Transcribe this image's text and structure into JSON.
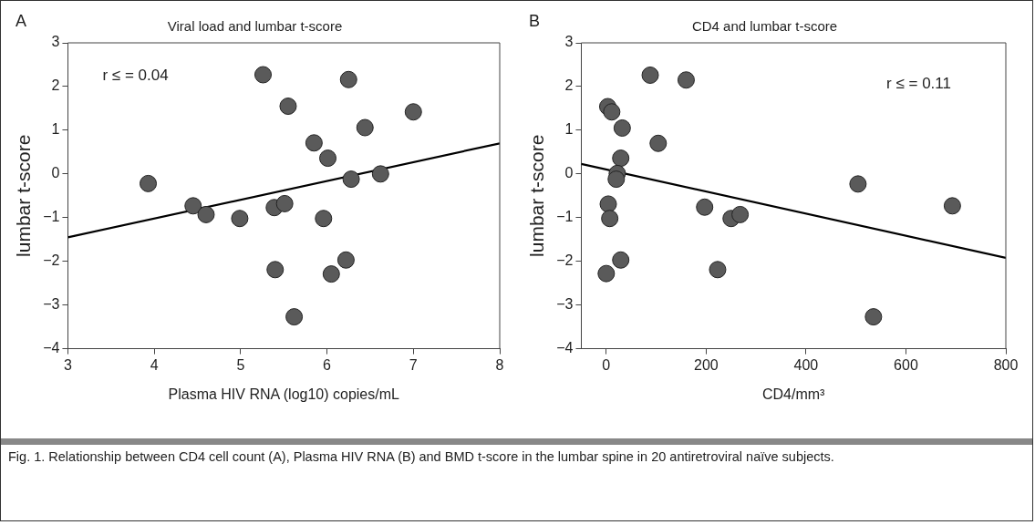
{
  "chart_data": [
    {
      "type": "scatter",
      "title": "Viral load and lumbar t-score",
      "xlabel": "Plasma HIV RNA (log10) copies/mL",
      "ylabel": "lumbar t-score",
      "annotations": [
        "A",
        "r ≤ = 0.04"
      ],
      "series": [
        {
          "color": "#5a5a5a",
          "marker": "circle",
          "x": [
            3.93,
            4.45,
            4.6,
            4.99,
            5.26,
            5.39,
            5.51,
            5.4,
            5.55,
            5.62,
            5.85,
            6.01,
            5.96,
            6.05,
            6.22,
            6.25,
            6.28,
            6.44,
            6.62,
            7.0
          ],
          "values": [
            -0.22,
            -0.73,
            -0.93,
            -1.02,
            2.27,
            -0.77,
            -0.68,
            -2.19,
            1.55,
            -3.27,
            0.71,
            0.36,
            -1.02,
            -2.29,
            -1.97,
            2.16,
            -0.12,
            1.06,
            0.0,
            1.42
          ]
        },
        {
          "type": "line",
          "color": "#000000",
          "marker": "none",
          "x": [
            3,
            8
          ],
          "values": [
            -1.45,
            0.7
          ]
        }
      ],
      "xlim": [
        3,
        8
      ],
      "xticks": [
        3,
        4,
        5,
        6,
        7,
        8
      ],
      "ylim": [
        -4,
        3
      ],
      "yticks": [
        -4,
        -3,
        -2,
        -1,
        0,
        1,
        2,
        3
      ],
      "grid": false,
      "legend": false
    },
    {
      "type": "scatter",
      "title": "CD4 and lumbar t-score",
      "xlabel": "CD4/mm³",
      "ylabel": "lumbar t-score",
      "annotations": [
        "B",
        "r ≤ = 0.11",
        "Fig. 1. Relationship between CD4 cell count (A), Plasma HIV RNA (B) and BMD t-score in the lumbar spine in 20 antiretroviral naïve subjects."
      ],
      "series": [
        {
          "color": "#5a5a5a",
          "marker": "circle",
          "x": [
            88,
            160,
            3,
            11,
            32,
            104,
            29,
            22,
            20,
            4,
            7,
            29,
            0,
            197,
            250,
            268,
            223,
            504,
            693,
            535
          ],
          "values": [
            2.26,
            2.15,
            1.54,
            1.42,
            1.05,
            0.7,
            0.36,
            0.01,
            -0.12,
            -0.69,
            -1.02,
            -1.97,
            -2.28,
            -0.76,
            -1.02,
            -0.93,
            -2.19,
            -0.23,
            -0.73,
            -3.27
          ]
        },
        {
          "type": "line",
          "color": "#000000",
          "marker": "none",
          "x": [
            -50,
            800
          ],
          "values": [
            0.23,
            -1.92
          ]
        }
      ],
      "xlim": [
        -50,
        800
      ],
      "xticks": [
        0,
        200,
        400,
        600,
        800
      ],
      "ylim": [
        -4,
        3
      ],
      "yticks": [
        -4,
        -3,
        -2,
        -1,
        0,
        1,
        2,
        3
      ],
      "grid": false,
      "legend": false
    }
  ]
}
